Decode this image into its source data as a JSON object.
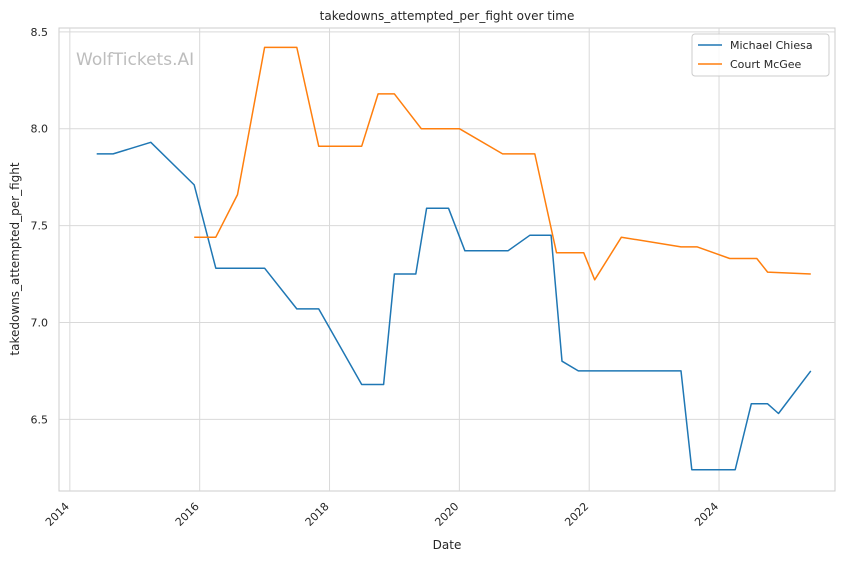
{
  "chart_data": {
    "type": "line",
    "title": "takedowns_attempted_per_fight over time",
    "xlabel": "Date",
    "ylabel": "takedowns_attempted_per_fight",
    "xlim": [
      "2013-11-01",
      "2025-10-15"
    ],
    "ylim": [
      6.13,
      8.52
    ],
    "x_ticks": [
      "2014",
      "2016",
      "2018",
      "2020",
      "2022",
      "2024"
    ],
    "y_ticks": [
      "6.5",
      "7.0",
      "7.5",
      "8.0",
      "8.5"
    ],
    "grid": true,
    "legend_position": "top-right",
    "watermark": "WolfTickets.AI",
    "series": [
      {
        "name": "Michael Chiesa",
        "color": "#1f77b4",
        "points": [
          {
            "x": "2014-06-01",
            "y": 7.87
          },
          {
            "x": "2014-09-01",
            "y": 7.87
          },
          {
            "x": "2015-04-01",
            "y": 7.93
          },
          {
            "x": "2015-12-01",
            "y": 7.71
          },
          {
            "x": "2016-04-01",
            "y": 7.28
          },
          {
            "x": "2017-01-01",
            "y": 7.28
          },
          {
            "x": "2017-07-01",
            "y": 7.07
          },
          {
            "x": "2017-11-01",
            "y": 7.07
          },
          {
            "x": "2018-07-01",
            "y": 6.68
          },
          {
            "x": "2018-11-01",
            "y": 6.68
          },
          {
            "x": "2019-01-01",
            "y": 7.25
          },
          {
            "x": "2019-05-01",
            "y": 7.25
          },
          {
            "x": "2019-07-01",
            "y": 7.59
          },
          {
            "x": "2019-11-01",
            "y": 7.59
          },
          {
            "x": "2020-02-01",
            "y": 7.37
          },
          {
            "x": "2020-10-01",
            "y": 7.37
          },
          {
            "x": "2021-02-01",
            "y": 7.45
          },
          {
            "x": "2021-06-01",
            "y": 7.45
          },
          {
            "x": "2021-08-01",
            "y": 6.8
          },
          {
            "x": "2021-11-01",
            "y": 6.75
          },
          {
            "x": "2023-06-01",
            "y": 6.75
          },
          {
            "x": "2023-08-01",
            "y": 6.24
          },
          {
            "x": "2024-04-01",
            "y": 6.24
          },
          {
            "x": "2024-07-01",
            "y": 6.58
          },
          {
            "x": "2024-10-01",
            "y": 6.58
          },
          {
            "x": "2024-12-01",
            "y": 6.53
          },
          {
            "x": "2025-06-01",
            "y": 6.75
          }
        ]
      },
      {
        "name": "Court McGee",
        "color": "#ff7f0e",
        "points": [
          {
            "x": "2015-12-01",
            "y": 7.44
          },
          {
            "x": "2016-04-01",
            "y": 7.44
          },
          {
            "x": "2016-08-01",
            "y": 7.66
          },
          {
            "x": "2017-01-01",
            "y": 8.42
          },
          {
            "x": "2017-07-01",
            "y": 8.42
          },
          {
            "x": "2017-11-01",
            "y": 7.91
          },
          {
            "x": "2018-07-01",
            "y": 7.91
          },
          {
            "x": "2018-10-01",
            "y": 8.18
          },
          {
            "x": "2019-01-01",
            "y": 8.18
          },
          {
            "x": "2019-06-01",
            "y": 8.0
          },
          {
            "x": "2020-01-01",
            "y": 8.0
          },
          {
            "x": "2020-09-01",
            "y": 7.87
          },
          {
            "x": "2021-03-01",
            "y": 7.87
          },
          {
            "x": "2021-07-01",
            "y": 7.36
          },
          {
            "x": "2021-12-01",
            "y": 7.36
          },
          {
            "x": "2022-02-01",
            "y": 7.22
          },
          {
            "x": "2022-07-01",
            "y": 7.44
          },
          {
            "x": "2023-06-01",
            "y": 7.39
          },
          {
            "x": "2023-09-01",
            "y": 7.39
          },
          {
            "x": "2024-03-01",
            "y": 7.33
          },
          {
            "x": "2024-08-01",
            "y": 7.33
          },
          {
            "x": "2024-10-01",
            "y": 7.26
          },
          {
            "x": "2025-06-01",
            "y": 7.25
          }
        ]
      }
    ]
  }
}
